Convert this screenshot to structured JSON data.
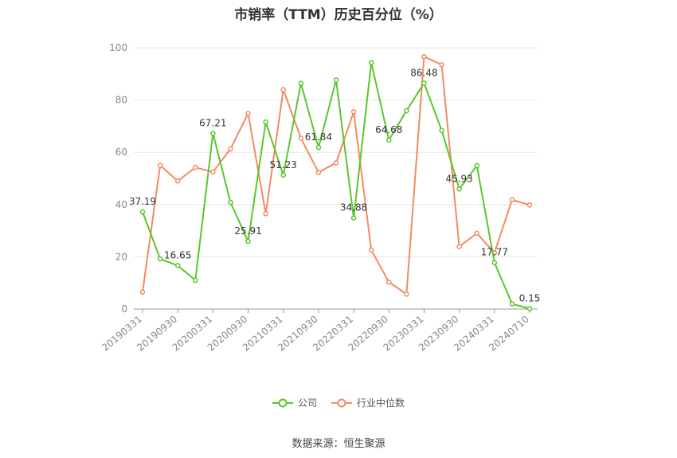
{
  "chart_data": {
    "type": "line",
    "title": "市销率（TTM）历史百分位（%）",
    "ylim": [
      0,
      100
    ],
    "yticks": [
      0,
      20,
      40,
      60,
      80,
      100
    ],
    "x_tick_labels": [
      "20190331",
      "20190930",
      "20200331",
      "20200930",
      "20210331",
      "20210930",
      "20220331",
      "20220930",
      "20230331",
      "20230930",
      "20240331",
      "20240710"
    ],
    "x": [
      "20190331",
      "20190630",
      "20190930",
      "20191231",
      "20200331",
      "20200630",
      "20200930",
      "20201231",
      "20210331",
      "20210630",
      "20210930",
      "20211231",
      "20220331",
      "20220630",
      "20220930",
      "20221231",
      "20230331",
      "20230630",
      "20230930",
      "20231231",
      "20240331",
      "20240630",
      "20240710"
    ],
    "series": [
      {
        "name": "公司",
        "color": "#5cc62a",
        "values": [
          37.19,
          19.2,
          16.65,
          11.0,
          67.21,
          40.8,
          25.91,
          71.6,
          51.23,
          86.4,
          61.84,
          87.7,
          34.88,
          94.3,
          64.68,
          75.9,
          86.48,
          68.4,
          45.93,
          54.9,
          17.77,
          2.0,
          0.15
        ],
        "labels": [
          "37.19",
          "",
          "16.65",
          "",
          "67.21",
          "",
          "25.91",
          "",
          "51.23",
          "",
          "61.84",
          "",
          "34.88",
          "",
          "64.68",
          "",
          "86.48",
          "",
          "45.93",
          "",
          "17.77",
          "",
          "0.15"
        ]
      },
      {
        "name": "行业中位数",
        "color": "#f28b62",
        "values": [
          6.5,
          55.0,
          49.0,
          54.2,
          52.5,
          61.3,
          74.9,
          36.5,
          84.0,
          65.4,
          52.3,
          56.0,
          75.5,
          22.6,
          10.3,
          5.7,
          96.6,
          93.5,
          23.9,
          29.0,
          21.5,
          41.8,
          39.8
        ]
      }
    ],
    "grid": true,
    "legend_position": "bottom"
  },
  "source_text": "数据来源：恒生聚源"
}
